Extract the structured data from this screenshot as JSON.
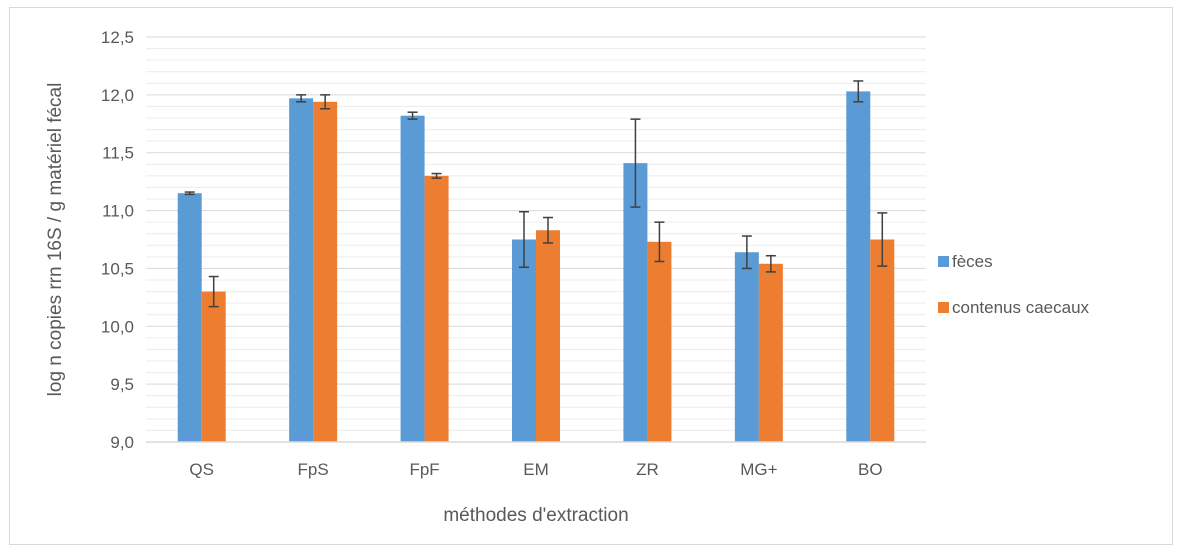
{
  "chart_data": {
    "type": "bar",
    "title": "",
    "xlabel": "méthodes d'extraction",
    "ylabel": "log n copies rrn 16S / g matériel fécal",
    "ylim": [
      9.0,
      12.5
    ],
    "ytick_step": 0.5,
    "minor_step": 0.1,
    "decimal_separator": ",",
    "grid": true,
    "legend_position": "right",
    "categories": [
      "QS",
      "FpS",
      "FpF",
      "EM",
      "ZR",
      "MG+",
      "BO"
    ],
    "series": [
      {
        "name": "fèces",
        "color": "#5B9BD5",
        "values": [
          11.15,
          11.97,
          11.82,
          10.75,
          11.41,
          10.64,
          12.03
        ],
        "errors": [
          0.01,
          0.03,
          0.03,
          0.24,
          0.38,
          0.14,
          0.09
        ]
      },
      {
        "name": "contenus caecaux",
        "color": "#ED7D31",
        "values": [
          10.3,
          11.94,
          11.3,
          10.83,
          10.73,
          10.54,
          10.75
        ],
        "errors": [
          0.13,
          0.06,
          0.02,
          0.11,
          0.17,
          0.07,
          0.23
        ]
      }
    ]
  }
}
